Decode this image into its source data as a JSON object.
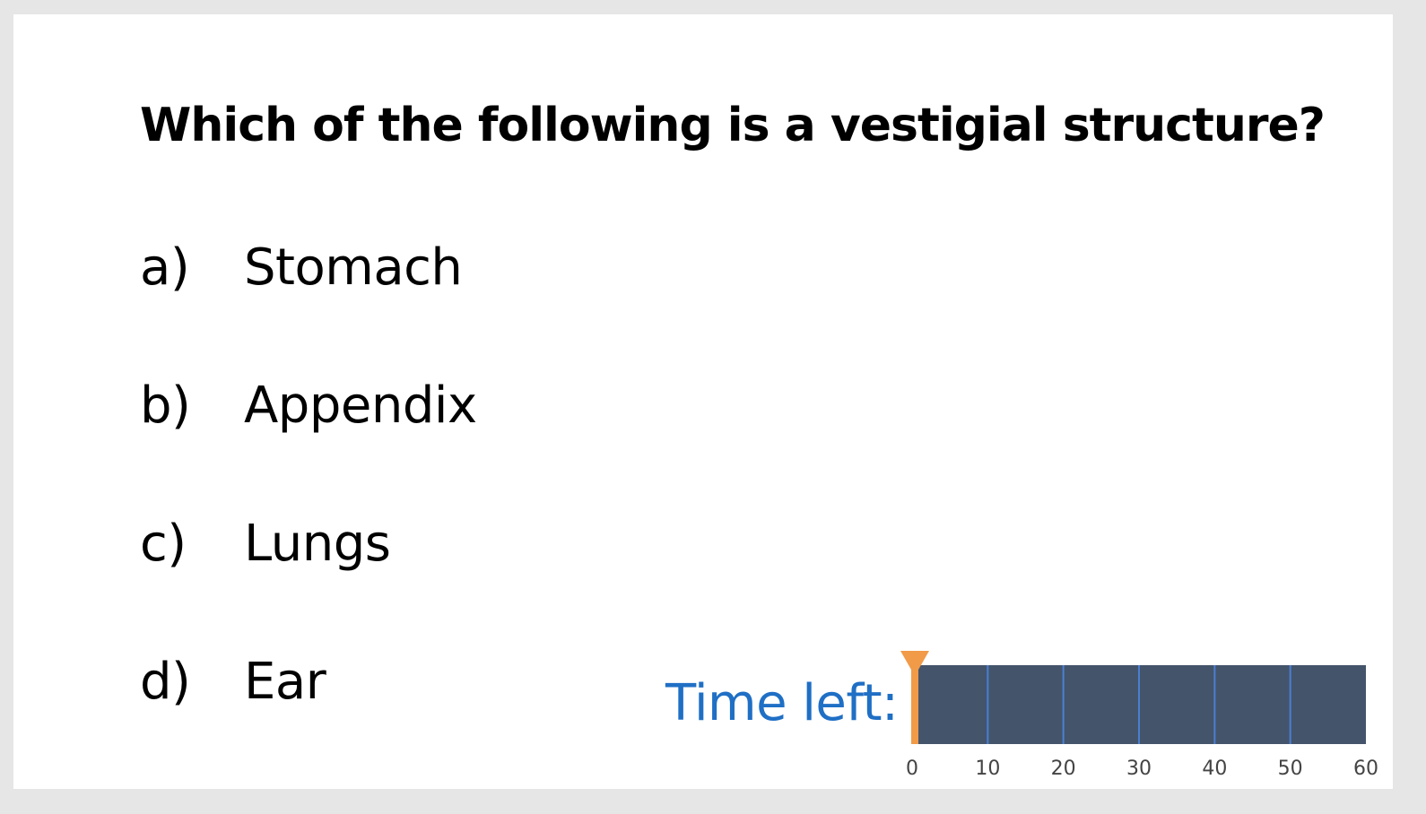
{
  "question": "Which of the following is a vestigial structure?",
  "options": [
    {
      "letter": "a)",
      "text": "Stomach"
    },
    {
      "letter": "b)",
      "text": "Appendix"
    },
    {
      "letter": "c)",
      "text": "Lungs"
    },
    {
      "letter": "d)",
      "text": "Ear"
    }
  ],
  "timer": {
    "label": "Time left:",
    "ticks": [
      "0",
      "10",
      "20",
      "30",
      "40",
      "50",
      "60"
    ],
    "min": 0,
    "max": 60,
    "elapsed": 0,
    "colors": {
      "bar": "#44546a",
      "gridline": "#4a7fd4",
      "marker": "#f19a48",
      "label": "#1f6fc5"
    }
  }
}
